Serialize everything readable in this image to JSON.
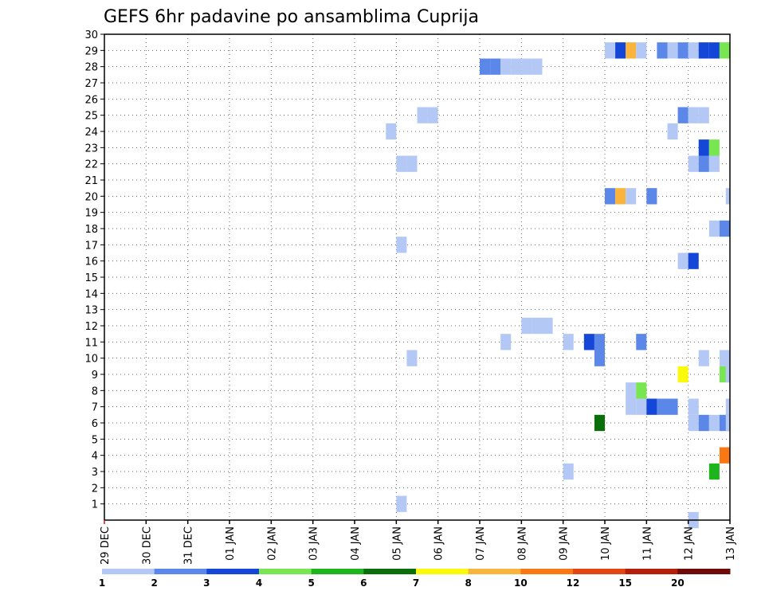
{
  "chart_data": {
    "type": "heatmap",
    "title": "GEFS 6hr padavine po ansamblima Cuprija",
    "xlabel": "",
    "ylabel": "",
    "x_tick_labels": [
      "29 DEC",
      "30 DEC",
      "31 DEC",
      "01 JAN",
      "02 JAN",
      "03 JAN",
      "04 JAN",
      "05 JAN",
      "06 JAN",
      "07 JAN",
      "08 JAN",
      "09 JAN",
      "10 JAN",
      "11 JAN",
      "12 JAN",
      "13 JAN"
    ],
    "y_tick_labels": [
      "1",
      "2",
      "3",
      "4",
      "5",
      "6",
      "7",
      "8",
      "9",
      "10",
      "11",
      "12",
      "13",
      "14",
      "15",
      "16",
      "17",
      "18",
      "19",
      "20",
      "21",
      "22",
      "23",
      "24",
      "25",
      "26",
      "27",
      "28",
      "29",
      "30"
    ],
    "xlim": [
      0,
      15
    ],
    "ylim": [
      0,
      30
    ],
    "grid": true,
    "colorbar": {
      "labels": [
        "1",
        "2",
        "3",
        "4",
        "5",
        "6",
        "7",
        "8",
        "10",
        "12",
        "15",
        "20"
      ],
      "colors": [
        "#b4c8f5",
        "#5a87e8",
        "#1446d8",
        "#78e650",
        "#1eb41e",
        "#0a6e0a",
        "#fafa0a",
        "#fab43c",
        "#fa7814",
        "#e14614",
        "#b41e0a",
        "#6e0a0a"
      ]
    },
    "cells": [
      {
        "member": 29,
        "t": 12.0,
        "c": 0
      },
      {
        "member": 29,
        "t": 12.25,
        "c": 2
      },
      {
        "member": 29,
        "t": 12.5,
        "c": 7
      },
      {
        "member": 29,
        "t": 12.75,
        "c": 0
      },
      {
        "member": 29,
        "t": 13.25,
        "c": 1
      },
      {
        "member": 29,
        "t": 13.5,
        "c": 0
      },
      {
        "member": 29,
        "t": 13.75,
        "c": 1
      },
      {
        "member": 29,
        "t": 14.0,
        "c": 0
      },
      {
        "member": 29,
        "t": 14.25,
        "c": 2
      },
      {
        "member": 29,
        "t": 14.5,
        "c": 2
      },
      {
        "member": 29,
        "t": 14.75,
        "c": 3
      },
      {
        "member": 28,
        "t": 9.0,
        "c": 1
      },
      {
        "member": 28,
        "t": 9.25,
        "c": 1
      },
      {
        "member": 28,
        "t": 9.5,
        "c": 0
      },
      {
        "member": 28,
        "t": 9.75,
        "c": 0
      },
      {
        "member": 28,
        "t": 10.0,
        "c": 0
      },
      {
        "member": 28,
        "t": 10.25,
        "c": 0
      },
      {
        "member": 25,
        "t": 7.5,
        "c": 0
      },
      {
        "member": 25,
        "t": 7.75,
        "c": 0
      },
      {
        "member": 25,
        "t": 13.75,
        "c": 1
      },
      {
        "member": 25,
        "t": 14.0,
        "c": 0
      },
      {
        "member": 25,
        "t": 14.25,
        "c": 0
      },
      {
        "member": 24,
        "t": 6.75,
        "c": 0
      },
      {
        "member": 24,
        "t": 13.5,
        "c": 0
      },
      {
        "member": 23,
        "t": 14.25,
        "c": 2
      },
      {
        "member": 23,
        "t": 14.5,
        "c": 3
      },
      {
        "member": 22,
        "t": 7.0,
        "c": 0
      },
      {
        "member": 22,
        "t": 7.25,
        "c": 0
      },
      {
        "member": 22,
        "t": 14.0,
        "c": 0
      },
      {
        "member": 22,
        "t": 14.25,
        "c": 1
      },
      {
        "member": 22,
        "t": 14.5,
        "c": 0
      },
      {
        "member": 20,
        "t": 12.0,
        "c": 1
      },
      {
        "member": 20,
        "t": 12.25,
        "c": 7
      },
      {
        "member": 20,
        "t": 12.5,
        "c": 0
      },
      {
        "member": 20,
        "t": 13.0,
        "c": 1
      },
      {
        "member": 20,
        "t": 14.9,
        "c": 0
      },
      {
        "member": 18,
        "t": 14.5,
        "c": 0
      },
      {
        "member": 18,
        "t": 14.75,
        "c": 1
      },
      {
        "member": 17,
        "t": 7.0,
        "c": 0
      },
      {
        "member": 16,
        "t": 13.75,
        "c": 0
      },
      {
        "member": 16,
        "t": 14.0,
        "c": 2
      },
      {
        "member": 12,
        "t": 10.0,
        "c": 0
      },
      {
        "member": 12,
        "t": 10.25,
        "c": 0
      },
      {
        "member": 12,
        "t": 10.5,
        "c": 0
      },
      {
        "member": 11,
        "t": 9.5,
        "c": 0
      },
      {
        "member": 11,
        "t": 11.0,
        "c": 0
      },
      {
        "member": 11,
        "t": 11.5,
        "c": 2
      },
      {
        "member": 11,
        "t": 11.75,
        "c": 1
      },
      {
        "member": 11,
        "t": 12.75,
        "c": 1
      },
      {
        "member": 10,
        "t": 7.25,
        "c": 0
      },
      {
        "member": 10,
        "t": 11.75,
        "c": 1
      },
      {
        "member": 10,
        "t": 14.25,
        "c": 0
      },
      {
        "member": 10,
        "t": 14.75,
        "c": 0
      },
      {
        "member": 9,
        "t": 13.75,
        "c": 6
      },
      {
        "member": 9,
        "t": 14.75,
        "c": 3
      },
      {
        "member": 9,
        "t": 14.9,
        "c": 0
      },
      {
        "member": 8,
        "t": 12.5,
        "c": 0
      },
      {
        "member": 8,
        "t": 12.75,
        "c": 3
      },
      {
        "member": 7,
        "t": 12.5,
        "c": 0
      },
      {
        "member": 7,
        "t": 12.75,
        "c": 0
      },
      {
        "member": 7,
        "t": 13.0,
        "c": 2
      },
      {
        "member": 7,
        "t": 13.25,
        "c": 1
      },
      {
        "member": 7,
        "t": 13.5,
        "c": 1
      },
      {
        "member": 7,
        "t": 14.0,
        "c": 0
      },
      {
        "member": 7,
        "t": 14.9,
        "c": 0
      },
      {
        "member": 6,
        "t": 11.75,
        "c": 5
      },
      {
        "member": 6,
        "t": 14.0,
        "c": 0
      },
      {
        "member": 6,
        "t": 14.25,
        "c": 1
      },
      {
        "member": 6,
        "t": 14.5,
        "c": 0
      },
      {
        "member": 6,
        "t": 14.75,
        "c": 1
      },
      {
        "member": 6,
        "t": 14.9,
        "c": 0
      },
      {
        "member": 4,
        "t": 14.75,
        "c": 8
      },
      {
        "member": 3,
        "t": 11.0,
        "c": 0
      },
      {
        "member": 3,
        "t": 14.5,
        "c": 4
      },
      {
        "member": 1,
        "t": 7.0,
        "c": 0
      },
      {
        "member": 0,
        "t": 14.0,
        "c": 0
      }
    ]
  }
}
